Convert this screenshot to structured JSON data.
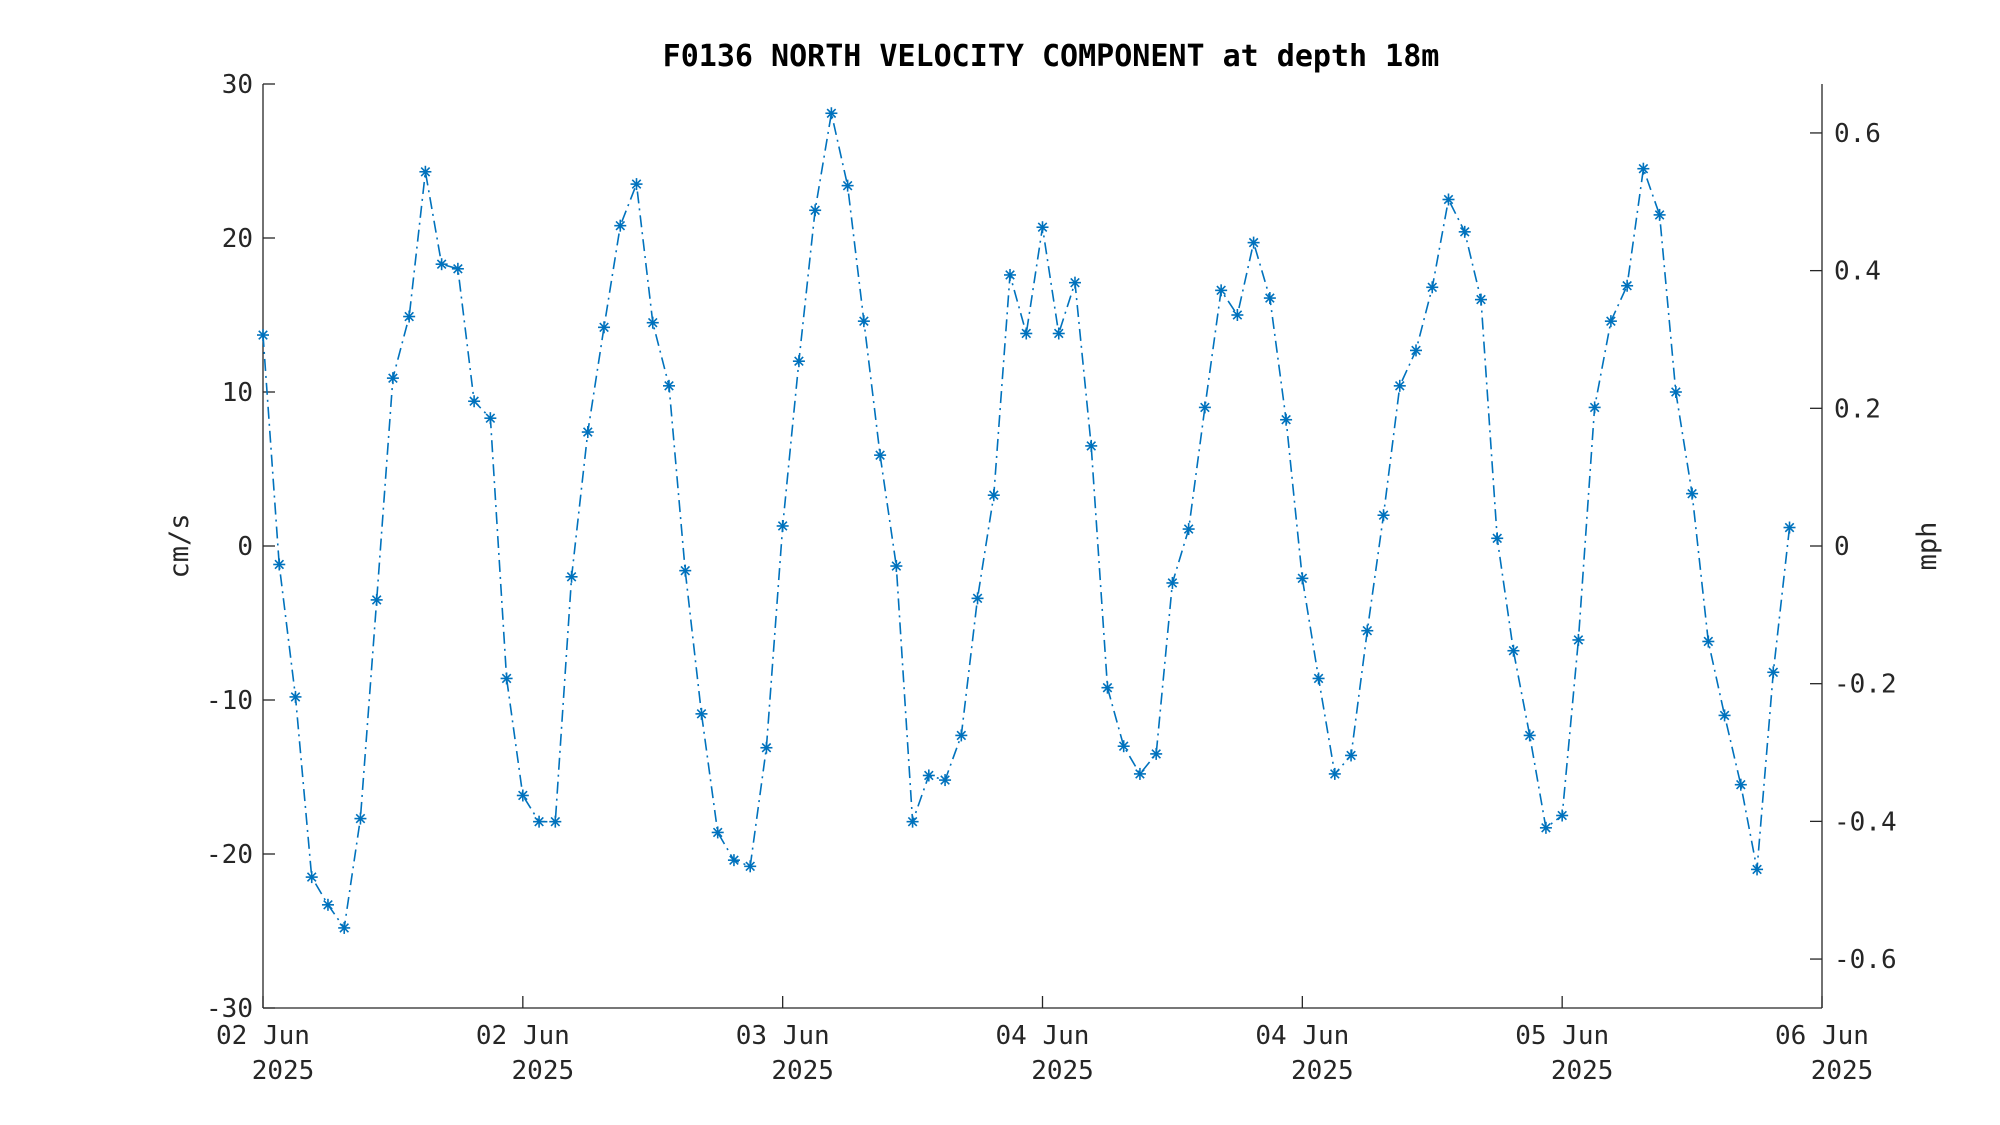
{
  "chart_data": {
    "type": "line",
    "title": "F0136 NORTH VELOCITY COMPONENT at depth 18m",
    "ylabel": "cm/s",
    "y2label": "mph",
    "ylim": [
      -30,
      30
    ],
    "y2lim": [
      -0.6711,
      0.6711
    ],
    "xlim_days": [
      0,
      6
    ],
    "yticks": [
      "30",
      "20",
      "10",
      "0",
      "-10",
      "-20",
      "-30"
    ],
    "y2ticks": [
      "0.6",
      "0.4",
      "0.2",
      "0",
      "-0.2",
      "-0.4",
      "-0.6"
    ],
    "xticks": [
      {
        "line1": "02 Jun",
        "line2": "2025"
      },
      {
        "line1": "02 Jun",
        "line2": "2025"
      },
      {
        "line1": "03 Jun",
        "line2": "2025"
      },
      {
        "line1": "04 Jun",
        "line2": "2025"
      },
      {
        "line1": "04 Jun",
        "line2": "2025"
      },
      {
        "line1": "05 Jun",
        "line2": "2025"
      },
      {
        "line1": "06 Jun",
        "line2": "2025"
      }
    ],
    "grid": false,
    "marker": "asterisk",
    "line_style": "dash-dot",
    "color": "#0072BD",
    "series": [
      {
        "x_step_hours": 1.5,
        "values": [
          13.7,
          -1.2,
          -9.8,
          -21.5,
          -23.3,
          -24.8,
          -17.7,
          -3.5,
          10.9,
          14.9,
          24.3,
          18.3,
          18.0,
          9.4,
          8.3,
          -8.6,
          -16.2,
          -17.9,
          -17.9,
          -2.0,
          7.4,
          14.2,
          20.8,
          23.5,
          14.5,
          10.4,
          -1.6,
          -10.9,
          -18.6,
          -20.4,
          -20.8,
          -13.1,
          1.3,
          12.0,
          21.8,
          28.1,
          23.4,
          14.6,
          5.9,
          -1.3,
          -17.9,
          -14.9,
          -15.2,
          -12.3,
          -3.4,
          3.3,
          17.6,
          13.8,
          20.7,
          13.8,
          17.1,
          6.5,
          -9.2,
          -13.0,
          -14.8,
          -13.5,
          -2.4,
          1.1,
          9.0,
          16.6,
          15.0,
          19.7,
          16.1,
          8.2,
          -2.1,
          -8.6,
          -14.8,
          -13.6,
          -5.5,
          2.0,
          10.4,
          12.7,
          16.8,
          22.5,
          20.4,
          16.0,
          0.5,
          -6.8,
          -12.3,
          -18.3,
          -17.5,
          -6.1,
          9.0,
          14.6,
          16.9,
          24.5,
          21.5,
          10.0,
          3.4,
          -6.2,
          -11.0,
          -15.5,
          -21.0,
          -8.2,
          1.2
        ]
      }
    ]
  }
}
